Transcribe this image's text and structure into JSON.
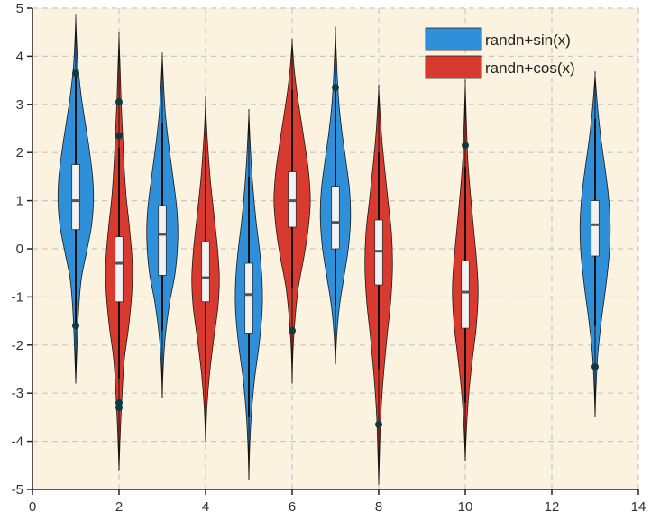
{
  "chart_data": {
    "type": "violin",
    "title": "",
    "xlabel": "",
    "ylabel": "",
    "xlim": [
      0,
      14
    ],
    "ylim": [
      -5,
      5
    ],
    "xticks": [
      0,
      2,
      4,
      6,
      8,
      10,
      12,
      14
    ],
    "yticks": [
      -5,
      -4,
      -3,
      -2,
      -1,
      0,
      1,
      2,
      3,
      4,
      5
    ],
    "grid": true,
    "legend_position": "top-right",
    "colors": {
      "background": "#fbf3df",
      "grid": "#c8c8c8",
      "sin": "#2f8fd8",
      "cos": "#d93a30",
      "box": "#f2f2f2",
      "median": "#555555",
      "outlier": "#0d3a40"
    },
    "series": [
      {
        "name": "randn+sin(x)",
        "color": "#2f8fd8",
        "key": "sin"
      },
      {
        "name": "randn+cos(x)",
        "color": "#d93a30",
        "key": "cos"
      }
    ],
    "violins": [
      {
        "x": 1,
        "series": "sin",
        "min": -2.8,
        "max": 4.8,
        "q1": 0.4,
        "median": 1.0,
        "q3": 1.75,
        "whisker_low": -1.6,
        "whisker_high": 3.65,
        "outliers": [
          3.65,
          -1.6
        ],
        "kde": [
          [
            -2.8,
            0
          ],
          [
            -2.0,
            0.03
          ],
          [
            -1.2,
            0.07
          ],
          [
            -0.6,
            0.13
          ],
          [
            0.0,
            0.26
          ],
          [
            0.5,
            0.36
          ],
          [
            1.0,
            0.4
          ],
          [
            1.5,
            0.38
          ],
          [
            2.1,
            0.3
          ],
          [
            2.7,
            0.2
          ],
          [
            3.2,
            0.12
          ],
          [
            3.8,
            0.05
          ],
          [
            4.3,
            0.02
          ],
          [
            4.8,
            0
          ]
        ]
      },
      {
        "x": 2,
        "series": "cos",
        "min": -4.6,
        "max": 4.4,
        "q1": -1.1,
        "median": -0.3,
        "q3": 0.25,
        "whisker_low": -2.7,
        "whisker_high": 2.1,
        "outliers": [
          3.05,
          2.35,
          -3.2,
          -3.3
        ],
        "kde": [
          [
            -4.6,
            0
          ],
          [
            -3.8,
            0.03
          ],
          [
            -3.0,
            0.07
          ],
          [
            -2.3,
            0.12
          ],
          [
            -1.6,
            0.22
          ],
          [
            -0.9,
            0.29
          ],
          [
            -0.3,
            0.3
          ],
          [
            0.4,
            0.24
          ],
          [
            1.1,
            0.16
          ],
          [
            1.8,
            0.11
          ],
          [
            2.4,
            0.08
          ],
          [
            3.0,
            0.05
          ],
          [
            3.6,
            0.03
          ],
          [
            4.4,
            0
          ]
        ]
      },
      {
        "x": 3,
        "series": "sin",
        "min": -3.1,
        "max": 4.0,
        "q1": -0.55,
        "median": 0.3,
        "q3": 0.9,
        "whisker_low": -1.7,
        "whisker_high": 2.6,
        "outliers": [],
        "kde": [
          [
            -3.1,
            0
          ],
          [
            -2.5,
            0.02
          ],
          [
            -1.8,
            0.07
          ],
          [
            -1.1,
            0.17
          ],
          [
            -0.5,
            0.29
          ],
          [
            0.2,
            0.35
          ],
          [
            0.8,
            0.33
          ],
          [
            1.5,
            0.24
          ],
          [
            2.2,
            0.14
          ],
          [
            2.8,
            0.07
          ],
          [
            3.4,
            0.03
          ],
          [
            4.0,
            0
          ]
        ]
      },
      {
        "x": 4,
        "series": "cos",
        "min": -4.0,
        "max": 3.1,
        "q1": -1.1,
        "median": -0.6,
        "q3": 0.15,
        "whisker_low": -2.6,
        "whisker_high": 1.9,
        "outliers": [],
        "kde": [
          [
            -4.0,
            0
          ],
          [
            -3.3,
            0.03
          ],
          [
            -2.6,
            0.09
          ],
          [
            -1.9,
            0.18
          ],
          [
            -1.2,
            0.28
          ],
          [
            -0.6,
            0.31
          ],
          [
            0.0,
            0.27
          ],
          [
            0.7,
            0.19
          ],
          [
            1.4,
            0.11
          ],
          [
            2.0,
            0.06
          ],
          [
            2.6,
            0.02
          ],
          [
            3.1,
            0
          ]
        ]
      },
      {
        "x": 5,
        "series": "sin",
        "min": -4.8,
        "max": 2.8,
        "q1": -1.75,
        "median": -0.95,
        "q3": -0.3,
        "whisker_low": -3.5,
        "whisker_high": 1.5,
        "outliers": [],
        "kde": [
          [
            -4.8,
            0
          ],
          [
            -4.1,
            0.02
          ],
          [
            -3.4,
            0.06
          ],
          [
            -2.7,
            0.13
          ],
          [
            -2.0,
            0.23
          ],
          [
            -1.3,
            0.3
          ],
          [
            -0.7,
            0.3
          ],
          [
            -0.1,
            0.25
          ],
          [
            0.6,
            0.16
          ],
          [
            1.3,
            0.09
          ],
          [
            2.0,
            0.04
          ],
          [
            2.8,
            0
          ]
        ]
      },
      {
        "x": 6,
        "series": "cos",
        "min": -2.8,
        "max": 4.3,
        "q1": 0.45,
        "median": 1.0,
        "q3": 1.6,
        "whisker_low": -0.8,
        "whisker_high": 3.3,
        "outliers": [
          -1.7
        ],
        "kde": [
          [
            -2.8,
            0
          ],
          [
            -2.1,
            0.02
          ],
          [
            -1.4,
            0.07
          ],
          [
            -0.8,
            0.14
          ],
          [
            -0.2,
            0.26
          ],
          [
            0.4,
            0.36
          ],
          [
            1.0,
            0.41
          ],
          [
            1.6,
            0.37
          ],
          [
            2.2,
            0.28
          ],
          [
            2.8,
            0.18
          ],
          [
            3.3,
            0.1
          ],
          [
            3.8,
            0.04
          ],
          [
            4.3,
            0
          ]
        ]
      },
      {
        "x": 7,
        "series": "sin",
        "min": -2.4,
        "max": 4.5,
        "q1": 0.0,
        "median": 0.55,
        "q3": 1.3,
        "whisker_low": -1.2,
        "whisker_high": 3.3,
        "outliers": [
          3.35
        ],
        "kde": [
          [
            -2.4,
            0
          ],
          [
            -1.8,
            0.03
          ],
          [
            -1.2,
            0.09
          ],
          [
            -0.6,
            0.19
          ],
          [
            0.0,
            0.29
          ],
          [
            0.6,
            0.34
          ],
          [
            1.2,
            0.32
          ],
          [
            1.8,
            0.24
          ],
          [
            2.4,
            0.15
          ],
          [
            3.0,
            0.08
          ],
          [
            3.6,
            0.04
          ],
          [
            4.5,
            0
          ]
        ]
      },
      {
        "x": 8,
        "series": "cos",
        "min": -4.9,
        "max": 3.3,
        "q1": -0.75,
        "median": -0.05,
        "q3": 0.6,
        "whisker_low": -2.5,
        "whisker_high": 2.0,
        "outliers": [
          -3.65
        ],
        "kde": [
          [
            -4.9,
            0
          ],
          [
            -4.2,
            0.02
          ],
          [
            -3.4,
            0.05
          ],
          [
            -2.6,
            0.11
          ],
          [
            -1.8,
            0.19
          ],
          [
            -1.1,
            0.27
          ],
          [
            -0.4,
            0.31
          ],
          [
            0.3,
            0.29
          ],
          [
            1.0,
            0.21
          ],
          [
            1.7,
            0.13
          ],
          [
            2.4,
            0.06
          ],
          [
            3.3,
            0
          ]
        ]
      },
      {
        "x": 10,
        "series": "cos",
        "min": -4.4,
        "max": 3.4,
        "q1": -1.65,
        "median": -0.9,
        "q3": -0.25,
        "whisker_low": -3.2,
        "whisker_high": 1.7,
        "outliers": [
          2.15
        ],
        "kde": [
          [
            -4.4,
            0
          ],
          [
            -3.7,
            0.03
          ],
          [
            -3.0,
            0.08
          ],
          [
            -2.3,
            0.16
          ],
          [
            -1.6,
            0.25
          ],
          [
            -0.9,
            0.29
          ],
          [
            -0.3,
            0.26
          ],
          [
            0.4,
            0.19
          ],
          [
            1.1,
            0.12
          ],
          [
            1.8,
            0.06
          ],
          [
            2.5,
            0.03
          ],
          [
            3.4,
            0
          ]
        ]
      },
      {
        "x": 13,
        "series": "sin",
        "min": -3.5,
        "max": 3.6,
        "q1": -0.15,
        "median": 0.5,
        "q3": 1.0,
        "whisker_low": -1.6,
        "whisker_high": 2.7,
        "outliers": [
          -2.45
        ],
        "kde": [
          [
            -3.5,
            0
          ],
          [
            -2.9,
            0.02
          ],
          [
            -2.2,
            0.06
          ],
          [
            -1.5,
            0.14
          ],
          [
            -0.8,
            0.24
          ],
          [
            -0.1,
            0.32
          ],
          [
            0.5,
            0.34
          ],
          [
            1.1,
            0.3
          ],
          [
            1.7,
            0.22
          ],
          [
            2.3,
            0.13
          ],
          [
            2.9,
            0.06
          ],
          [
            3.6,
            0
          ]
        ]
      }
    ]
  }
}
